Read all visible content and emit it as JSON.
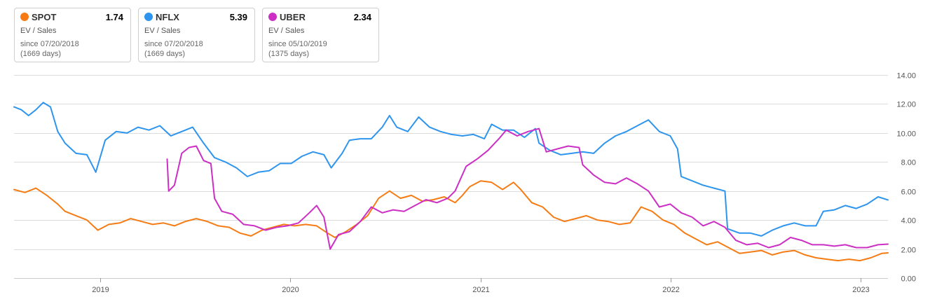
{
  "legend": [
    {
      "ticker": "SPOT",
      "value": "1.74",
      "metric": "EV / Sales",
      "since": "since 07/20/2018",
      "days": "(1669 days)",
      "color": "#f57c14"
    },
    {
      "ticker": "NFLX",
      "value": "5.39",
      "metric": "EV / Sales",
      "since": "since 07/20/2018",
      "days": "(1669 days)",
      "color": "#2e95ee"
    },
    {
      "ticker": "UBER",
      "value": "2.34",
      "metric": "EV / Sales",
      "since": "since 05/10/2019",
      "days": "(1375 days)",
      "color": "#cc2fc4"
    }
  ],
  "chart_data": {
    "type": "line",
    "xlabel": "",
    "ylabel": "",
    "x_range": [
      "2018-07-20",
      "2023-02-22"
    ],
    "ylim": [
      0,
      14
    ],
    "y_ticks": [
      "14.00",
      "12.00",
      "10.00",
      "8.00",
      "6.00",
      "4.00",
      "2.00",
      "0.00"
    ],
    "x_ticks": [
      {
        "date": "2019-01-01",
        "label": "2019"
      },
      {
        "date": "2020-01-01",
        "label": "2020"
      },
      {
        "date": "2021-01-01",
        "label": "2021"
      },
      {
        "date": "2022-01-01",
        "label": "2022"
      },
      {
        "date": "2023-01-01",
        "label": "2023"
      }
    ],
    "grid": true,
    "series": [
      {
        "name": "SPOT",
        "color": "#f57c14",
        "points": [
          [
            "2018-07-20",
            6.1
          ],
          [
            "2018-08-10",
            5.9
          ],
          [
            "2018-08-31",
            6.2
          ],
          [
            "2018-09-21",
            5.7
          ],
          [
            "2018-10-12",
            5.1
          ],
          [
            "2018-10-26",
            4.6
          ],
          [
            "2018-11-16",
            4.3
          ],
          [
            "2018-12-07",
            4.0
          ],
          [
            "2018-12-28",
            3.3
          ],
          [
            "2019-01-18",
            3.7
          ],
          [
            "2019-02-08",
            3.8
          ],
          [
            "2019-03-01",
            4.1
          ],
          [
            "2019-03-22",
            3.9
          ],
          [
            "2019-04-12",
            3.7
          ],
          [
            "2019-05-03",
            3.8
          ],
          [
            "2019-05-24",
            3.6
          ],
          [
            "2019-06-14",
            3.9
          ],
          [
            "2019-07-05",
            4.1
          ],
          [
            "2019-07-26",
            3.9
          ],
          [
            "2019-08-16",
            3.6
          ],
          [
            "2019-09-06",
            3.5
          ],
          [
            "2019-09-27",
            3.1
          ],
          [
            "2019-10-18",
            2.9
          ],
          [
            "2019-11-08",
            3.3
          ],
          [
            "2019-11-29",
            3.5
          ],
          [
            "2019-12-20",
            3.7
          ],
          [
            "2020-01-10",
            3.6
          ],
          [
            "2020-01-31",
            3.7
          ],
          [
            "2020-02-21",
            3.6
          ],
          [
            "2020-03-13",
            3.1
          ],
          [
            "2020-03-27",
            2.8
          ],
          [
            "2020-04-17",
            3.2
          ],
          [
            "2020-05-08",
            3.7
          ],
          [
            "2020-05-29",
            4.3
          ],
          [
            "2020-06-19",
            5.5
          ],
          [
            "2020-07-10",
            6.0
          ],
          [
            "2020-07-31",
            5.5
          ],
          [
            "2020-08-21",
            5.7
          ],
          [
            "2020-09-11",
            5.3
          ],
          [
            "2020-10-02",
            5.4
          ],
          [
            "2020-10-23",
            5.6
          ],
          [
            "2020-11-13",
            5.2
          ],
          [
            "2020-11-27",
            5.7
          ],
          [
            "2020-12-11",
            6.3
          ],
          [
            "2021-01-01",
            6.7
          ],
          [
            "2021-01-22",
            6.6
          ],
          [
            "2021-02-12",
            6.1
          ],
          [
            "2021-03-05",
            6.6
          ],
          [
            "2021-03-19",
            6.1
          ],
          [
            "2021-04-09",
            5.2
          ],
          [
            "2021-04-30",
            4.9
          ],
          [
            "2021-05-21",
            4.2
          ],
          [
            "2021-06-11",
            3.9
          ],
          [
            "2021-07-02",
            4.1
          ],
          [
            "2021-07-23",
            4.3
          ],
          [
            "2021-08-13",
            4.0
          ],
          [
            "2021-09-03",
            3.9
          ],
          [
            "2021-09-24",
            3.7
          ],
          [
            "2021-10-15",
            3.8
          ],
          [
            "2021-11-05",
            4.9
          ],
          [
            "2021-11-26",
            4.6
          ],
          [
            "2021-12-17",
            4.0
          ],
          [
            "2022-01-07",
            3.7
          ],
          [
            "2022-01-28",
            3.1
          ],
          [
            "2022-02-18",
            2.7
          ],
          [
            "2022-03-11",
            2.3
          ],
          [
            "2022-04-01",
            2.5
          ],
          [
            "2022-04-22",
            2.1
          ],
          [
            "2022-05-13",
            1.7
          ],
          [
            "2022-06-03",
            1.8
          ],
          [
            "2022-06-24",
            1.9
          ],
          [
            "2022-07-15",
            1.6
          ],
          [
            "2022-08-05",
            1.8
          ],
          [
            "2022-08-26",
            1.9
          ],
          [
            "2022-09-16",
            1.6
          ],
          [
            "2022-10-07",
            1.4
          ],
          [
            "2022-10-28",
            1.3
          ],
          [
            "2022-11-18",
            1.2
          ],
          [
            "2022-12-09",
            1.3
          ],
          [
            "2022-12-30",
            1.2
          ],
          [
            "2023-01-20",
            1.4
          ],
          [
            "2023-02-10",
            1.7
          ],
          [
            "2023-02-22",
            1.74
          ]
        ]
      },
      {
        "name": "NFLX",
        "color": "#2e95ee",
        "points": [
          [
            "2018-07-20",
            11.8
          ],
          [
            "2018-08-03",
            11.6
          ],
          [
            "2018-08-17",
            11.2
          ],
          [
            "2018-08-31",
            11.6
          ],
          [
            "2018-09-14",
            12.1
          ],
          [
            "2018-09-28",
            11.8
          ],
          [
            "2018-10-12",
            10.1
          ],
          [
            "2018-10-26",
            9.3
          ],
          [
            "2018-11-16",
            8.6
          ],
          [
            "2018-12-07",
            8.5
          ],
          [
            "2018-12-24",
            7.3
          ],
          [
            "2019-01-11",
            9.5
          ],
          [
            "2019-02-01",
            10.1
          ],
          [
            "2019-02-22",
            10.0
          ],
          [
            "2019-03-15",
            10.4
          ],
          [
            "2019-04-05",
            10.2
          ],
          [
            "2019-04-26",
            10.5
          ],
          [
            "2019-05-17",
            9.8
          ],
          [
            "2019-06-07",
            10.1
          ],
          [
            "2019-06-28",
            10.4
          ],
          [
            "2019-07-19",
            9.3
          ],
          [
            "2019-08-09",
            8.3
          ],
          [
            "2019-08-30",
            8.0
          ],
          [
            "2019-09-20",
            7.6
          ],
          [
            "2019-10-11",
            7.0
          ],
          [
            "2019-11-01",
            7.3
          ],
          [
            "2019-11-22",
            7.4
          ],
          [
            "2019-12-13",
            7.9
          ],
          [
            "2020-01-03",
            7.9
          ],
          [
            "2020-01-24",
            8.4
          ],
          [
            "2020-02-14",
            8.7
          ],
          [
            "2020-03-06",
            8.5
          ],
          [
            "2020-03-20",
            7.6
          ],
          [
            "2020-04-10",
            8.6
          ],
          [
            "2020-04-24",
            9.5
          ],
          [
            "2020-05-15",
            9.6
          ],
          [
            "2020-06-05",
            9.6
          ],
          [
            "2020-06-26",
            10.4
          ],
          [
            "2020-07-10",
            11.2
          ],
          [
            "2020-07-24",
            10.4
          ],
          [
            "2020-08-14",
            10.1
          ],
          [
            "2020-09-04",
            11.1
          ],
          [
            "2020-09-25",
            10.4
          ],
          [
            "2020-10-16",
            10.1
          ],
          [
            "2020-11-06",
            9.9
          ],
          [
            "2020-11-27",
            9.8
          ],
          [
            "2020-12-18",
            9.9
          ],
          [
            "2021-01-08",
            9.6
          ],
          [
            "2021-01-22",
            10.6
          ],
          [
            "2021-02-12",
            10.2
          ],
          [
            "2021-03-05",
            10.2
          ],
          [
            "2021-03-26",
            9.7
          ],
          [
            "2021-04-16",
            10.3
          ],
          [
            "2021-04-23",
            9.3
          ],
          [
            "2021-05-14",
            8.8
          ],
          [
            "2021-06-04",
            8.5
          ],
          [
            "2021-06-25",
            8.6
          ],
          [
            "2021-07-16",
            8.7
          ],
          [
            "2021-08-06",
            8.6
          ],
          [
            "2021-08-27",
            9.3
          ],
          [
            "2021-09-17",
            9.8
          ],
          [
            "2021-10-08",
            10.1
          ],
          [
            "2021-10-29",
            10.5
          ],
          [
            "2021-11-19",
            10.9
          ],
          [
            "2021-12-10",
            10.1
          ],
          [
            "2021-12-31",
            9.8
          ],
          [
            "2022-01-14",
            8.9
          ],
          [
            "2022-01-21",
            7.0
          ],
          [
            "2022-02-11",
            6.7
          ],
          [
            "2022-03-04",
            6.4
          ],
          [
            "2022-03-25",
            6.2
          ],
          [
            "2022-04-15",
            6.0
          ],
          [
            "2022-04-20",
            3.4
          ],
          [
            "2022-05-13",
            3.1
          ],
          [
            "2022-06-03",
            3.1
          ],
          [
            "2022-06-24",
            2.9
          ],
          [
            "2022-07-15",
            3.3
          ],
          [
            "2022-08-05",
            3.6
          ],
          [
            "2022-08-26",
            3.8
          ],
          [
            "2022-09-16",
            3.6
          ],
          [
            "2022-10-07",
            3.6
          ],
          [
            "2022-10-21",
            4.6
          ],
          [
            "2022-11-11",
            4.7
          ],
          [
            "2022-12-02",
            5.0
          ],
          [
            "2022-12-23",
            4.8
          ],
          [
            "2023-01-13",
            5.1
          ],
          [
            "2023-02-03",
            5.6
          ],
          [
            "2023-02-22",
            5.39
          ]
        ]
      },
      {
        "name": "UBER",
        "color": "#cc2fc4",
        "points": [
          [
            "2019-05-10",
            8.2
          ],
          [
            "2019-05-13",
            6.0
          ],
          [
            "2019-05-24",
            6.4
          ],
          [
            "2019-06-07",
            8.6
          ],
          [
            "2019-06-21",
            9.0
          ],
          [
            "2019-07-05",
            9.1
          ],
          [
            "2019-07-19",
            8.1
          ],
          [
            "2019-08-02",
            7.9
          ],
          [
            "2019-08-09",
            5.5
          ],
          [
            "2019-08-23",
            4.6
          ],
          [
            "2019-09-13",
            4.4
          ],
          [
            "2019-10-04",
            3.7
          ],
          [
            "2019-10-25",
            3.6
          ],
          [
            "2019-11-15",
            3.3
          ],
          [
            "2019-12-06",
            3.5
          ],
          [
            "2019-12-27",
            3.6
          ],
          [
            "2020-01-17",
            3.8
          ],
          [
            "2020-02-07",
            4.5
          ],
          [
            "2020-02-21",
            5.0
          ],
          [
            "2020-03-06",
            4.2
          ],
          [
            "2020-03-18",
            2.0
          ],
          [
            "2020-04-03",
            3.0
          ],
          [
            "2020-04-24",
            3.2
          ],
          [
            "2020-05-15",
            3.9
          ],
          [
            "2020-06-05",
            4.9
          ],
          [
            "2020-06-26",
            4.5
          ],
          [
            "2020-07-17",
            4.7
          ],
          [
            "2020-08-07",
            4.6
          ],
          [
            "2020-08-28",
            5.0
          ],
          [
            "2020-09-18",
            5.4
          ],
          [
            "2020-10-09",
            5.2
          ],
          [
            "2020-10-30",
            5.5
          ],
          [
            "2020-11-13",
            6.0
          ],
          [
            "2020-12-04",
            7.7
          ],
          [
            "2020-12-25",
            8.2
          ],
          [
            "2021-01-15",
            8.8
          ],
          [
            "2021-02-05",
            9.6
          ],
          [
            "2021-02-19",
            10.2
          ],
          [
            "2021-03-12",
            9.8
          ],
          [
            "2021-04-02",
            10.1
          ],
          [
            "2021-04-23",
            10.3
          ],
          [
            "2021-05-07",
            8.7
          ],
          [
            "2021-05-28",
            8.9
          ],
          [
            "2021-06-18",
            9.1
          ],
          [
            "2021-07-09",
            9.0
          ],
          [
            "2021-07-16",
            7.8
          ],
          [
            "2021-08-06",
            7.1
          ],
          [
            "2021-08-27",
            6.6
          ],
          [
            "2021-09-17",
            6.5
          ],
          [
            "2021-10-08",
            6.9
          ],
          [
            "2021-10-29",
            6.5
          ],
          [
            "2021-11-19",
            6.0
          ],
          [
            "2021-12-10",
            4.9
          ],
          [
            "2021-12-31",
            5.1
          ],
          [
            "2022-01-21",
            4.5
          ],
          [
            "2022-02-11",
            4.2
          ],
          [
            "2022-03-04",
            3.6
          ],
          [
            "2022-03-25",
            3.9
          ],
          [
            "2022-04-15",
            3.5
          ],
          [
            "2022-05-06",
            2.6
          ],
          [
            "2022-05-27",
            2.3
          ],
          [
            "2022-06-17",
            2.4
          ],
          [
            "2022-07-08",
            2.1
          ],
          [
            "2022-07-29",
            2.3
          ],
          [
            "2022-08-19",
            2.8
          ],
          [
            "2022-09-09",
            2.6
          ],
          [
            "2022-09-30",
            2.3
          ],
          [
            "2022-10-21",
            2.3
          ],
          [
            "2022-11-11",
            2.2
          ],
          [
            "2022-12-02",
            2.3
          ],
          [
            "2022-12-23",
            2.1
          ],
          [
            "2023-01-13",
            2.1
          ],
          [
            "2023-02-03",
            2.3
          ],
          [
            "2023-02-22",
            2.34
          ]
        ]
      }
    ]
  }
}
